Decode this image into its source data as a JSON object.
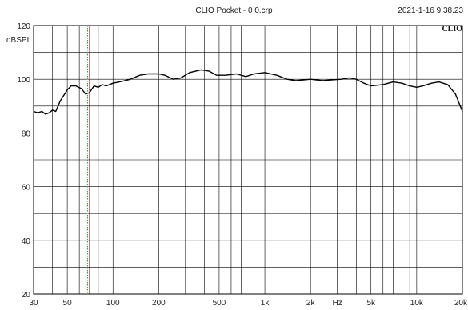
{
  "header": {
    "title": "CLIO Pocket - 0 0.crp",
    "timestamp": "2021-1-16 9.38.23",
    "brand": "CLIO"
  },
  "chart_data": {
    "type": "line",
    "title": "CLIO Pocket - 0 0.crp",
    "ylabel": "dBSPL",
    "xlabel": "Hz",
    "xscale": "log",
    "xlim": [
      30,
      20000
    ],
    "ylim": [
      20,
      120
    ],
    "grid": true,
    "y_ticks": [
      {
        "value": 20,
        "label": "20"
      },
      {
        "value": 40,
        "label": "40"
      },
      {
        "value": 60,
        "label": "60"
      },
      {
        "value": 80,
        "label": "80"
      },
      {
        "value": 100,
        "label": "100"
      },
      {
        "value": 120,
        "label": "120"
      }
    ],
    "x_ticks": [
      {
        "value": 30,
        "label": "30"
      },
      {
        "value": 50,
        "label": "50"
      },
      {
        "value": 100,
        "label": "100"
      },
      {
        "value": 200,
        "label": "200"
      },
      {
        "value": 500,
        "label": "500"
      },
      {
        "value": 1000,
        "label": "1k"
      },
      {
        "value": 2000,
        "label": "2k"
      },
      {
        "value": 5000,
        "label": "5k"
      },
      {
        "value": 10000,
        "label": "10k"
      },
      {
        "value": 20000,
        "label": "20k"
      }
    ],
    "markers": [
      {
        "x": 68,
        "color": "#2e9e2e"
      },
      {
        "x": 70,
        "color": "#c03030"
      }
    ],
    "series": [
      {
        "color": "#000000",
        "points": [
          [
            30,
            88
          ],
          [
            32,
            87.5
          ],
          [
            34,
            88
          ],
          [
            36,
            87
          ],
          [
            38,
            87.5
          ],
          [
            40,
            88.5
          ],
          [
            42,
            88
          ],
          [
            45,
            92
          ],
          [
            50,
            96
          ],
          [
            53,
            97.5
          ],
          [
            57,
            97.5
          ],
          [
            62,
            96.5
          ],
          [
            66,
            94.5
          ],
          [
            70,
            95
          ],
          [
            75,
            97.5
          ],
          [
            80,
            97
          ],
          [
            85,
            98
          ],
          [
            90,
            97.5
          ],
          [
            100,
            98.5
          ],
          [
            110,
            99
          ],
          [
            120,
            99.5
          ],
          [
            130,
            100
          ],
          [
            150,
            101.5
          ],
          [
            170,
            102
          ],
          [
            200,
            102
          ],
          [
            220,
            101.5
          ],
          [
            250,
            100
          ],
          [
            280,
            100.5
          ],
          [
            320,
            102.5
          ],
          [
            380,
            103.5
          ],
          [
            430,
            103
          ],
          [
            480,
            101.5
          ],
          [
            550,
            101.5
          ],
          [
            650,
            102
          ],
          [
            750,
            101
          ],
          [
            850,
            102
          ],
          [
            1000,
            102.5
          ],
          [
            1200,
            101.5
          ],
          [
            1400,
            100
          ],
          [
            1600,
            99.5
          ],
          [
            2000,
            100
          ],
          [
            2400,
            99.5
          ],
          [
            2800,
            99.8
          ],
          [
            3200,
            100
          ],
          [
            3600,
            100.5
          ],
          [
            4000,
            100
          ],
          [
            4500,
            98.5
          ],
          [
            5000,
            97.5
          ],
          [
            6000,
            98
          ],
          [
            7000,
            99
          ],
          [
            8000,
            98.5
          ],
          [
            9000,
            97.5
          ],
          [
            10000,
            97
          ],
          [
            11000,
            97.5
          ],
          [
            12500,
            98.5
          ],
          [
            14000,
            99
          ],
          [
            16000,
            98
          ],
          [
            18000,
            94.5
          ],
          [
            20000,
            88
          ]
        ]
      }
    ]
  }
}
